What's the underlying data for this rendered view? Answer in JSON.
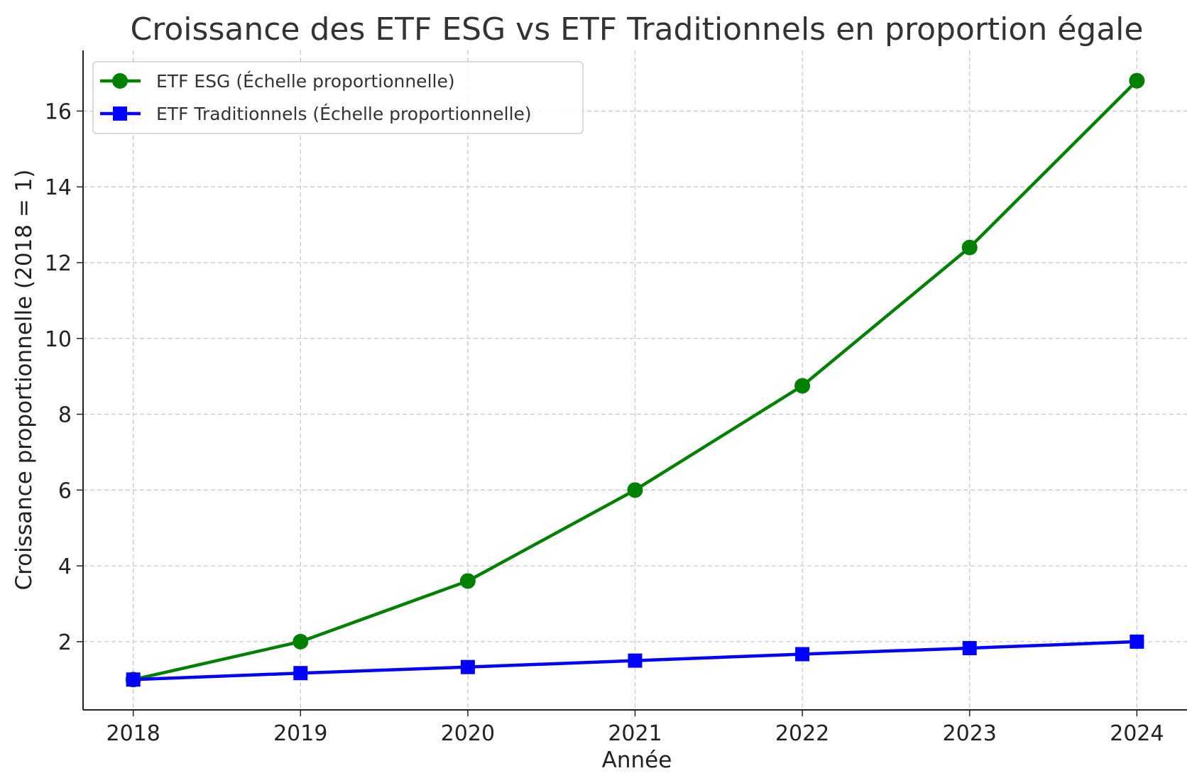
{
  "chart_data": {
    "type": "line",
    "title": "Croissance des ETF ESG vs ETF Traditionnels en proportion égale",
    "xlabel": "Année",
    "ylabel": "Croissance proportionnelle (2018 = 1)",
    "x": [
      2018,
      2019,
      2020,
      2021,
      2022,
      2023,
      2024
    ],
    "xlim": [
      2017.7,
      2024.3
    ],
    "ylim": [
      0.2,
      17.6
    ],
    "yticks": [
      2,
      4,
      6,
      8,
      10,
      12,
      14,
      16
    ],
    "grid": true,
    "legend_position": "top-left",
    "series": [
      {
        "name": "ETF ESG (Échelle proportionnelle)",
        "values": [
          1.0,
          2.0,
          3.6,
          6.0,
          8.75,
          12.4,
          16.8
        ],
        "color": "#008000",
        "marker": "circle"
      },
      {
        "name": "ETF Traditionnels (Échelle proportionnelle)",
        "values": [
          1.0,
          1.17,
          1.33,
          1.5,
          1.67,
          1.83,
          2.0
        ],
        "color": "#0000ff",
        "marker": "square"
      }
    ]
  }
}
